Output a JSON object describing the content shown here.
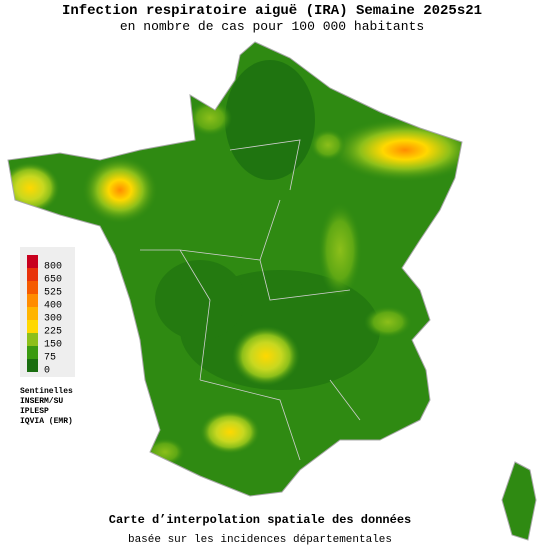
{
  "header": {
    "title": "Infection respiratoire aiguë (IRA) Semaine 2025s21",
    "subtitle": "en nombre de cas pour 100 000 habitants"
  },
  "legend": {
    "values": [
      800,
      650,
      525,
      400,
      300,
      225,
      150,
      75,
      0
    ],
    "colors": [
      "#c8001e",
      "#e8320a",
      "#f55a00",
      "#ff8c00",
      "#ffb400",
      "#ffd800",
      "#8cbf1a",
      "#3a9a10",
      "#1a6e10"
    ]
  },
  "sources": [
    "Sentinelles",
    "INSERM/SU",
    "IPLESP",
    "IQVIA (EMR)"
  ],
  "footer": {
    "caption": "Carte d’interpolation spatiale des données",
    "note": "basée sur les incidences départementales"
  }
}
